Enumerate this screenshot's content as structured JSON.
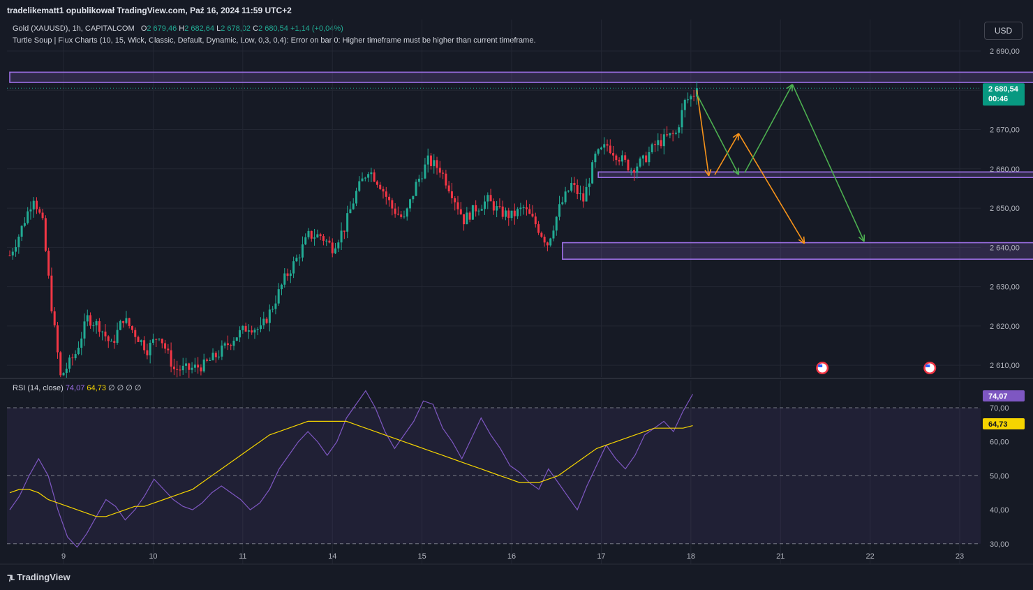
{
  "banner": "tradelikematt1 opublikował TradingView.com, Paź 16, 2024 11:59 UTC+2",
  "legend": {
    "symbol": "Gold (XAUUSD), 1h, CAPITALCOM",
    "o_label": "O",
    "o_value": "2 679,46",
    "h_label": "H",
    "h_value": "2 682,64",
    "l_label": "L",
    "l_value": "2 678,02",
    "c_label": "C",
    "c_value": "2 680,54",
    "change": "+1,14 (+0,04%)",
    "indicator": "Turtle Soup | Flux Charts (10, 15, Wick, Classic, Default, Dynamic, Low, 0,3, 0,4): Error on bar 0: Higher timeframe must be higher than current timeframe."
  },
  "rsi_legend": {
    "name": "RSI (14, close)",
    "rsi_value": "74,07",
    "ma_value": "64,73",
    "empty_values": "∅ ∅ ∅ ∅"
  },
  "currency_button": "USD",
  "price_badge": {
    "price": "2 680,54",
    "countdown": "00:46"
  },
  "rsi_badges": {
    "rsi": "74,07",
    "ma": "64,73"
  },
  "footer_brand": "TradingView",
  "colors": {
    "bg": "#161a25",
    "up": "#22ab94",
    "down": "#f23645",
    "zone": "#9c6fe4",
    "rsi_line": "#7e57c2",
    "rsi_ma": "#f5d400",
    "arrow_orange": "#f7931a",
    "arrow_green": "#4caf50"
  },
  "chart_data": [
    {
      "type": "candlestick",
      "title": "Gold (XAUUSD), 1h, CAPITALCOM",
      "y_ticks": [
        "2 690,00",
        "2 680,00",
        "2 670,00",
        "2 660,00",
        "2 650,00",
        "2 640,00",
        "2 630,00",
        "2 620,00",
        "2 610,00"
      ],
      "y_tick_values": [
        2690,
        2680,
        2670,
        2660,
        2650,
        2640,
        2630,
        2620,
        2610
      ],
      "ylim": [
        2607,
        2698
      ],
      "x_ticks": [
        "9",
        "10",
        "11",
        "14",
        "15",
        "16",
        "17",
        "18",
        "21",
        "22",
        "23"
      ],
      "last_price": 2680.54,
      "close_path": [
        {
          "t": 0,
          "c": 2638
        },
        {
          "t": 3,
          "c": 2643
        },
        {
          "t": 8,
          "c": 2653
        },
        {
          "t": 11,
          "c": 2646
        },
        {
          "t": 14,
          "c": 2625
        },
        {
          "t": 17,
          "c": 2607
        },
        {
          "t": 22,
          "c": 2613
        },
        {
          "t": 26,
          "c": 2622
        },
        {
          "t": 30,
          "c": 2620
        },
        {
          "t": 34,
          "c": 2615
        },
        {
          "t": 38,
          "c": 2622
        },
        {
          "t": 42,
          "c": 2618
        },
        {
          "t": 46,
          "c": 2614
        },
        {
          "t": 50,
          "c": 2618
        },
        {
          "t": 55,
          "c": 2609
        },
        {
          "t": 60,
          "c": 2609
        },
        {
          "t": 65,
          "c": 2610
        },
        {
          "t": 70,
          "c": 2613
        },
        {
          "t": 75,
          "c": 2617
        },
        {
          "t": 80,
          "c": 2620
        },
        {
          "t": 84,
          "c": 2619
        },
        {
          "t": 88,
          "c": 2625
        },
        {
          "t": 92,
          "c": 2632
        },
        {
          "t": 96,
          "c": 2637
        },
        {
          "t": 100,
          "c": 2643
        },
        {
          "t": 104,
          "c": 2643
        },
        {
          "t": 108,
          "c": 2640
        },
        {
          "t": 112,
          "c": 2645
        },
        {
          "t": 116,
          "c": 2654
        },
        {
          "t": 120,
          "c": 2660
        },
        {
          "t": 124,
          "c": 2656
        },
        {
          "t": 128,
          "c": 2650
        },
        {
          "t": 132,
          "c": 2647
        },
        {
          "t": 136,
          "c": 2656
        },
        {
          "t": 140,
          "c": 2662
        },
        {
          "t": 144,
          "c": 2660
        },
        {
          "t": 148,
          "c": 2654
        },
        {
          "t": 152,
          "c": 2647
        },
        {
          "t": 156,
          "c": 2650
        },
        {
          "t": 160,
          "c": 2652
        },
        {
          "t": 164,
          "c": 2649
        },
        {
          "t": 168,
          "c": 2648
        },
        {
          "t": 172,
          "c": 2650
        },
        {
          "t": 176,
          "c": 2646
        },
        {
          "t": 180,
          "c": 2641
        },
        {
          "t": 184,
          "c": 2650
        },
        {
          "t": 188,
          "c": 2656
        },
        {
          "t": 192,
          "c": 2652
        },
        {
          "t": 196,
          "c": 2663
        },
        {
          "t": 200,
          "c": 2666
        },
        {
          "t": 204,
          "c": 2663
        },
        {
          "t": 208,
          "c": 2660
        },
        {
          "t": 212,
          "c": 2662
        },
        {
          "t": 216,
          "c": 2666
        },
        {
          "t": 220,
          "c": 2668
        },
        {
          "t": 223,
          "c": 2669
        },
        {
          "t": 226,
          "c": 2677
        },
        {
          "t": 229,
          "c": 2679
        },
        {
          "t": 230,
          "c": 2680.54
        }
      ],
      "zones": [
        {
          "from_t": 0,
          "to_t": 377,
          "low": 2682,
          "high": 2684.6
        },
        {
          "from_t": 197,
          "to_t": 378,
          "low": 2657.8,
          "high": 2659.2
        },
        {
          "from_t": 185,
          "to_t": 377,
          "low": 2637,
          "high": 2641.2
        }
      ],
      "arrows_orange": [
        {
          "from_t": 230,
          "from": 2680,
          "to_t": 234,
          "to": 2658.2
        },
        {
          "from_t": 236,
          "from": 2658.5,
          "to_t": 244,
          "to": 2669
        },
        {
          "from_t": 244,
          "from": 2669,
          "to_t": 266,
          "to": 2641
        }
      ],
      "arrows_green": [
        {
          "from_t": 230,
          "from": 2679,
          "to_t": 244,
          "to": 2658.5
        },
        {
          "from_t": 246,
          "from": 2659,
          "to_t": 262,
          "to": 2681.5
        },
        {
          "from_t": 262,
          "from": 2681.5,
          "to_t": 286,
          "to": 2641.5
        }
      ],
      "event_markers_t": [
        272,
        308
      ]
    },
    {
      "type": "line",
      "title": "RSI (14, close)",
      "y_ticks": [
        "70,00",
        "60,00",
        "50,00",
        "40,00",
        "30,00"
      ],
      "y_tick_values": [
        70,
        60,
        50,
        40,
        30
      ],
      "ylim": [
        24,
        78
      ],
      "band": [
        30,
        70
      ],
      "series": [
        {
          "name": "RSI",
          "values": [
            40,
            44,
            50,
            55,
            50,
            40,
            32,
            29,
            33,
            38,
            43,
            41,
            37,
            40,
            44,
            49,
            46,
            43,
            41,
            40,
            42,
            45,
            47,
            45,
            43,
            40,
            42,
            46,
            52,
            56,
            60,
            63,
            60,
            56,
            60,
            67,
            71,
            75,
            70,
            63,
            58,
            62,
            66,
            72,
            71,
            64,
            60,
            55,
            61,
            67,
            62,
            58,
            53,
            51,
            48,
            46,
            52,
            48,
            44,
            40,
            47,
            53,
            59,
            55,
            52,
            56,
            62,
            64,
            66,
            63,
            69,
            74
          ]
        },
        {
          "name": "MA",
          "values": [
            45,
            46,
            46,
            45,
            43,
            42,
            41,
            40,
            39,
            38,
            38,
            39,
            40,
            41,
            41,
            42,
            43,
            44,
            45,
            46,
            48,
            50,
            52,
            54,
            56,
            58,
            60,
            62,
            63,
            64,
            65,
            66,
            66,
            66,
            66,
            66,
            65,
            64,
            63,
            62,
            61,
            60,
            59,
            58,
            57,
            56,
            55,
            54,
            53,
            52,
            51,
            50,
            49,
            48,
            48,
            48,
            49,
            50,
            52,
            54,
            56,
            58,
            59,
            60,
            61,
            62,
            63,
            64,
            64,
            64,
            64,
            64.73
          ]
        }
      ]
    }
  ]
}
